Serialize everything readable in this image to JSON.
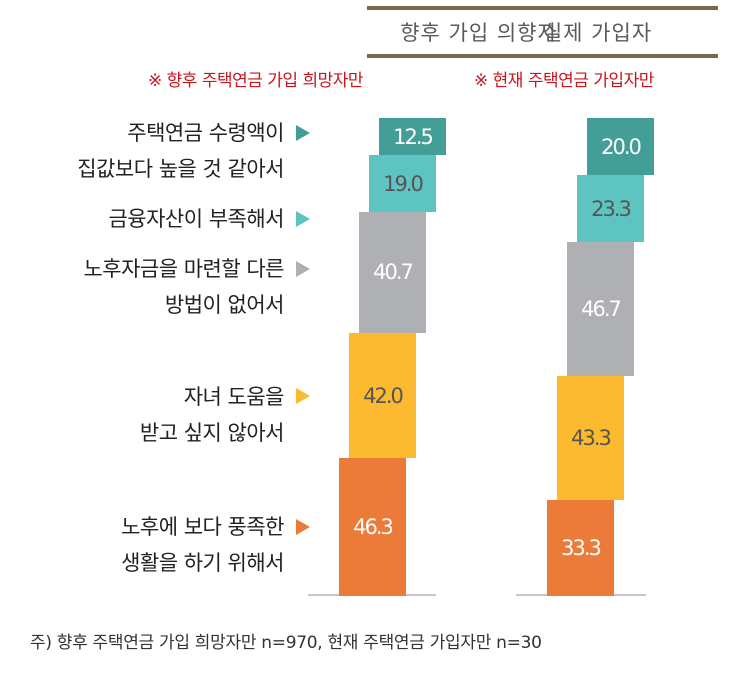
{
  "chart_data": {
    "type": "bar",
    "stacked": true,
    "categories": [
      "주택연금 수령액이 집값보다 높을 것 같아서",
      "금융자산이 부족해서",
      "노후자금을 마련할 다른 방법이 없어서",
      "자녀 도움을 받고 싶지 않아서",
      "노후에 보다 풍족한 생활을 하기 위해서"
    ],
    "category_lines": [
      [
        "주택연금 수령액이",
        "집값보다 높을 것 같아서"
      ],
      [
        "금융자산이 부족해서"
      ],
      [
        "노후자금을 마련할 다른",
        "방법이 없어서"
      ],
      [
        "자녀 도움을",
        "받고 싶지 않아서"
      ],
      [
        "노후에 보다 풍족한",
        "생활을 하기 위해서"
      ]
    ],
    "colors": [
      "#449e98",
      "#5ec4c2",
      "#aeb0b3",
      "#fbba2f",
      "#ec7b3a"
    ],
    "label_colors": [
      "#ffffff",
      "#555555",
      "#ffffff",
      "#555555",
      "#ffffff"
    ],
    "series": [
      {
        "name": "향후 가입 의향자",
        "note": "※ 향후 주택연금 가입 희망자만",
        "values": [
          12.5,
          19.0,
          40.7,
          42.0,
          46.3
        ],
        "labels": [
          "12.5",
          "19.0",
          "40.7",
          "42.0",
          "46.3"
        ]
      },
      {
        "name": "실제 가입자",
        "note": "※ 현재 주택연금 가입자만",
        "values": [
          20.0,
          23.3,
          46.7,
          43.3,
          33.3
        ],
        "labels": [
          "20.0",
          "23.3",
          "46.7",
          "43.3",
          "33.3"
        ]
      }
    ],
    "footnote": "주) 향후 주택연금 가입 희망자만 n=970, 현재 주택연금 가입자만 n=30"
  }
}
